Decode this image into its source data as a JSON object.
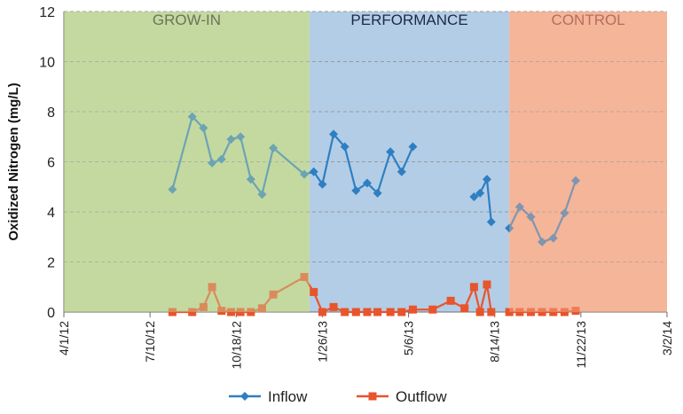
{
  "chart_data": {
    "type": "line",
    "title": "",
    "xlabel": "",
    "ylabel": "Oxidized Nitrogen (mg/L)",
    "ylim": [
      0,
      12
    ],
    "yticks": [
      0,
      2,
      4,
      6,
      8,
      10,
      12
    ],
    "x_range": [
      "2012-04-01",
      "2014-03-02"
    ],
    "x_ticks": [
      {
        "label": "4/1/12",
        "date": "2012-04-01"
      },
      {
        "label": "7/10/12",
        "date": "2012-07-10"
      },
      {
        "label": "10/18/12",
        "date": "2012-10-18"
      },
      {
        "label": "1/26/13",
        "date": "2013-01-26"
      },
      {
        "label": "5/6/13",
        "date": "2013-05-06"
      },
      {
        "label": "8/14/13",
        "date": "2013-08-14"
      },
      {
        "label": "11/22/13",
        "date": "2013-11-22"
      },
      {
        "label": "3/2/14",
        "date": "2014-03-02"
      }
    ],
    "phases": [
      {
        "label": "GROW-IN",
        "start": "2012-04-01",
        "end": "2013-01-11",
        "color": "#c4d9a0",
        "label_color": "#2a2a2a"
      },
      {
        "label": "PERFORMANCE",
        "start": "2013-01-11",
        "end": "2013-08-31",
        "color": "#b3cde6",
        "label_color": "#1f2a44"
      },
      {
        "label": "CONTROL",
        "start": "2013-08-31",
        "end": "2014-03-02",
        "color": "#f4b698",
        "label_color": "#8b3a3a"
      }
    ],
    "series": [
      {
        "name": "Inflow",
        "color": "#2e7fc2",
        "marker": "diamond",
        "points": [
          [
            "2012-08-05",
            4.9
          ],
          [
            "2012-08-28",
            7.8
          ],
          [
            "2012-09-10",
            7.35
          ],
          [
            "2012-09-20",
            5.95
          ],
          [
            "2012-10-01",
            6.1
          ],
          [
            "2012-10-12",
            6.9
          ],
          [
            "2012-10-23",
            7.0
          ],
          [
            "2012-11-04",
            5.3
          ],
          [
            "2012-11-17",
            4.7
          ],
          [
            "2012-11-30",
            6.55
          ],
          [
            "2013-01-05",
            5.5
          ],
          [
            "2013-01-16",
            5.6
          ],
          [
            "2013-01-26",
            5.1
          ],
          [
            "2013-02-08",
            7.1
          ],
          [
            "2013-02-21",
            6.6
          ],
          [
            "2013-03-06",
            4.85
          ],
          [
            "2013-03-19",
            5.15
          ],
          [
            "2013-03-31",
            4.75
          ],
          [
            "2013-04-15",
            6.4
          ],
          [
            "2013-04-28",
            5.6
          ],
          [
            "2013-05-11",
            6.6
          ],
          null,
          [
            "2013-07-21",
            4.6
          ],
          [
            "2013-07-28",
            4.75
          ],
          [
            "2013-08-05",
            5.3
          ],
          [
            "2013-08-10",
            3.6
          ],
          null,
          [
            "2013-08-31",
            3.35
          ],
          [
            "2013-09-12",
            4.2
          ],
          [
            "2013-09-25",
            3.8
          ],
          [
            "2013-10-08",
            2.8
          ],
          [
            "2013-10-21",
            2.95
          ],
          [
            "2013-11-03",
            3.95
          ],
          [
            "2013-11-16",
            5.25
          ]
        ]
      },
      {
        "name": "Outflow",
        "color": "#e8542b",
        "marker": "square",
        "points": [
          [
            "2012-08-05",
            0.0
          ],
          [
            "2012-08-28",
            0.0
          ],
          [
            "2012-09-10",
            0.2
          ],
          [
            "2012-09-20",
            1.0
          ],
          [
            "2012-10-01",
            0.05
          ],
          [
            "2012-10-12",
            0.0
          ],
          [
            "2012-10-23",
            0.0
          ],
          [
            "2012-11-04",
            0.0
          ],
          [
            "2012-11-17",
            0.15
          ],
          [
            "2012-11-30",
            0.7
          ],
          [
            "2013-01-05",
            1.4
          ],
          [
            "2013-01-16",
            0.8
          ],
          [
            "2013-01-26",
            0.0
          ],
          [
            "2013-02-08",
            0.2
          ],
          [
            "2013-02-21",
            0.0
          ],
          [
            "2013-03-06",
            0.0
          ],
          [
            "2013-03-19",
            0.0
          ],
          [
            "2013-03-31",
            0.0
          ],
          [
            "2013-04-15",
            0.0
          ],
          [
            "2013-04-28",
            0.0
          ],
          [
            "2013-05-11",
            0.1
          ],
          [
            "2013-06-03",
            0.1
          ],
          [
            "2013-06-24",
            0.45
          ],
          [
            "2013-07-10",
            0.15
          ],
          [
            "2013-07-21",
            1.0
          ],
          [
            "2013-07-28",
            0.0
          ],
          [
            "2013-08-05",
            1.1
          ],
          [
            "2013-08-10",
            0.0
          ],
          null,
          [
            "2013-08-31",
            0.0
          ],
          [
            "2013-09-12",
            0.0
          ],
          [
            "2013-09-25",
            0.0
          ],
          [
            "2013-10-08",
            0.0
          ],
          [
            "2013-10-21",
            0.0
          ],
          [
            "2013-11-03",
            0.0
          ],
          [
            "2013-11-16",
            0.05
          ]
        ]
      }
    ],
    "legend": {
      "position": "bottom"
    }
  }
}
